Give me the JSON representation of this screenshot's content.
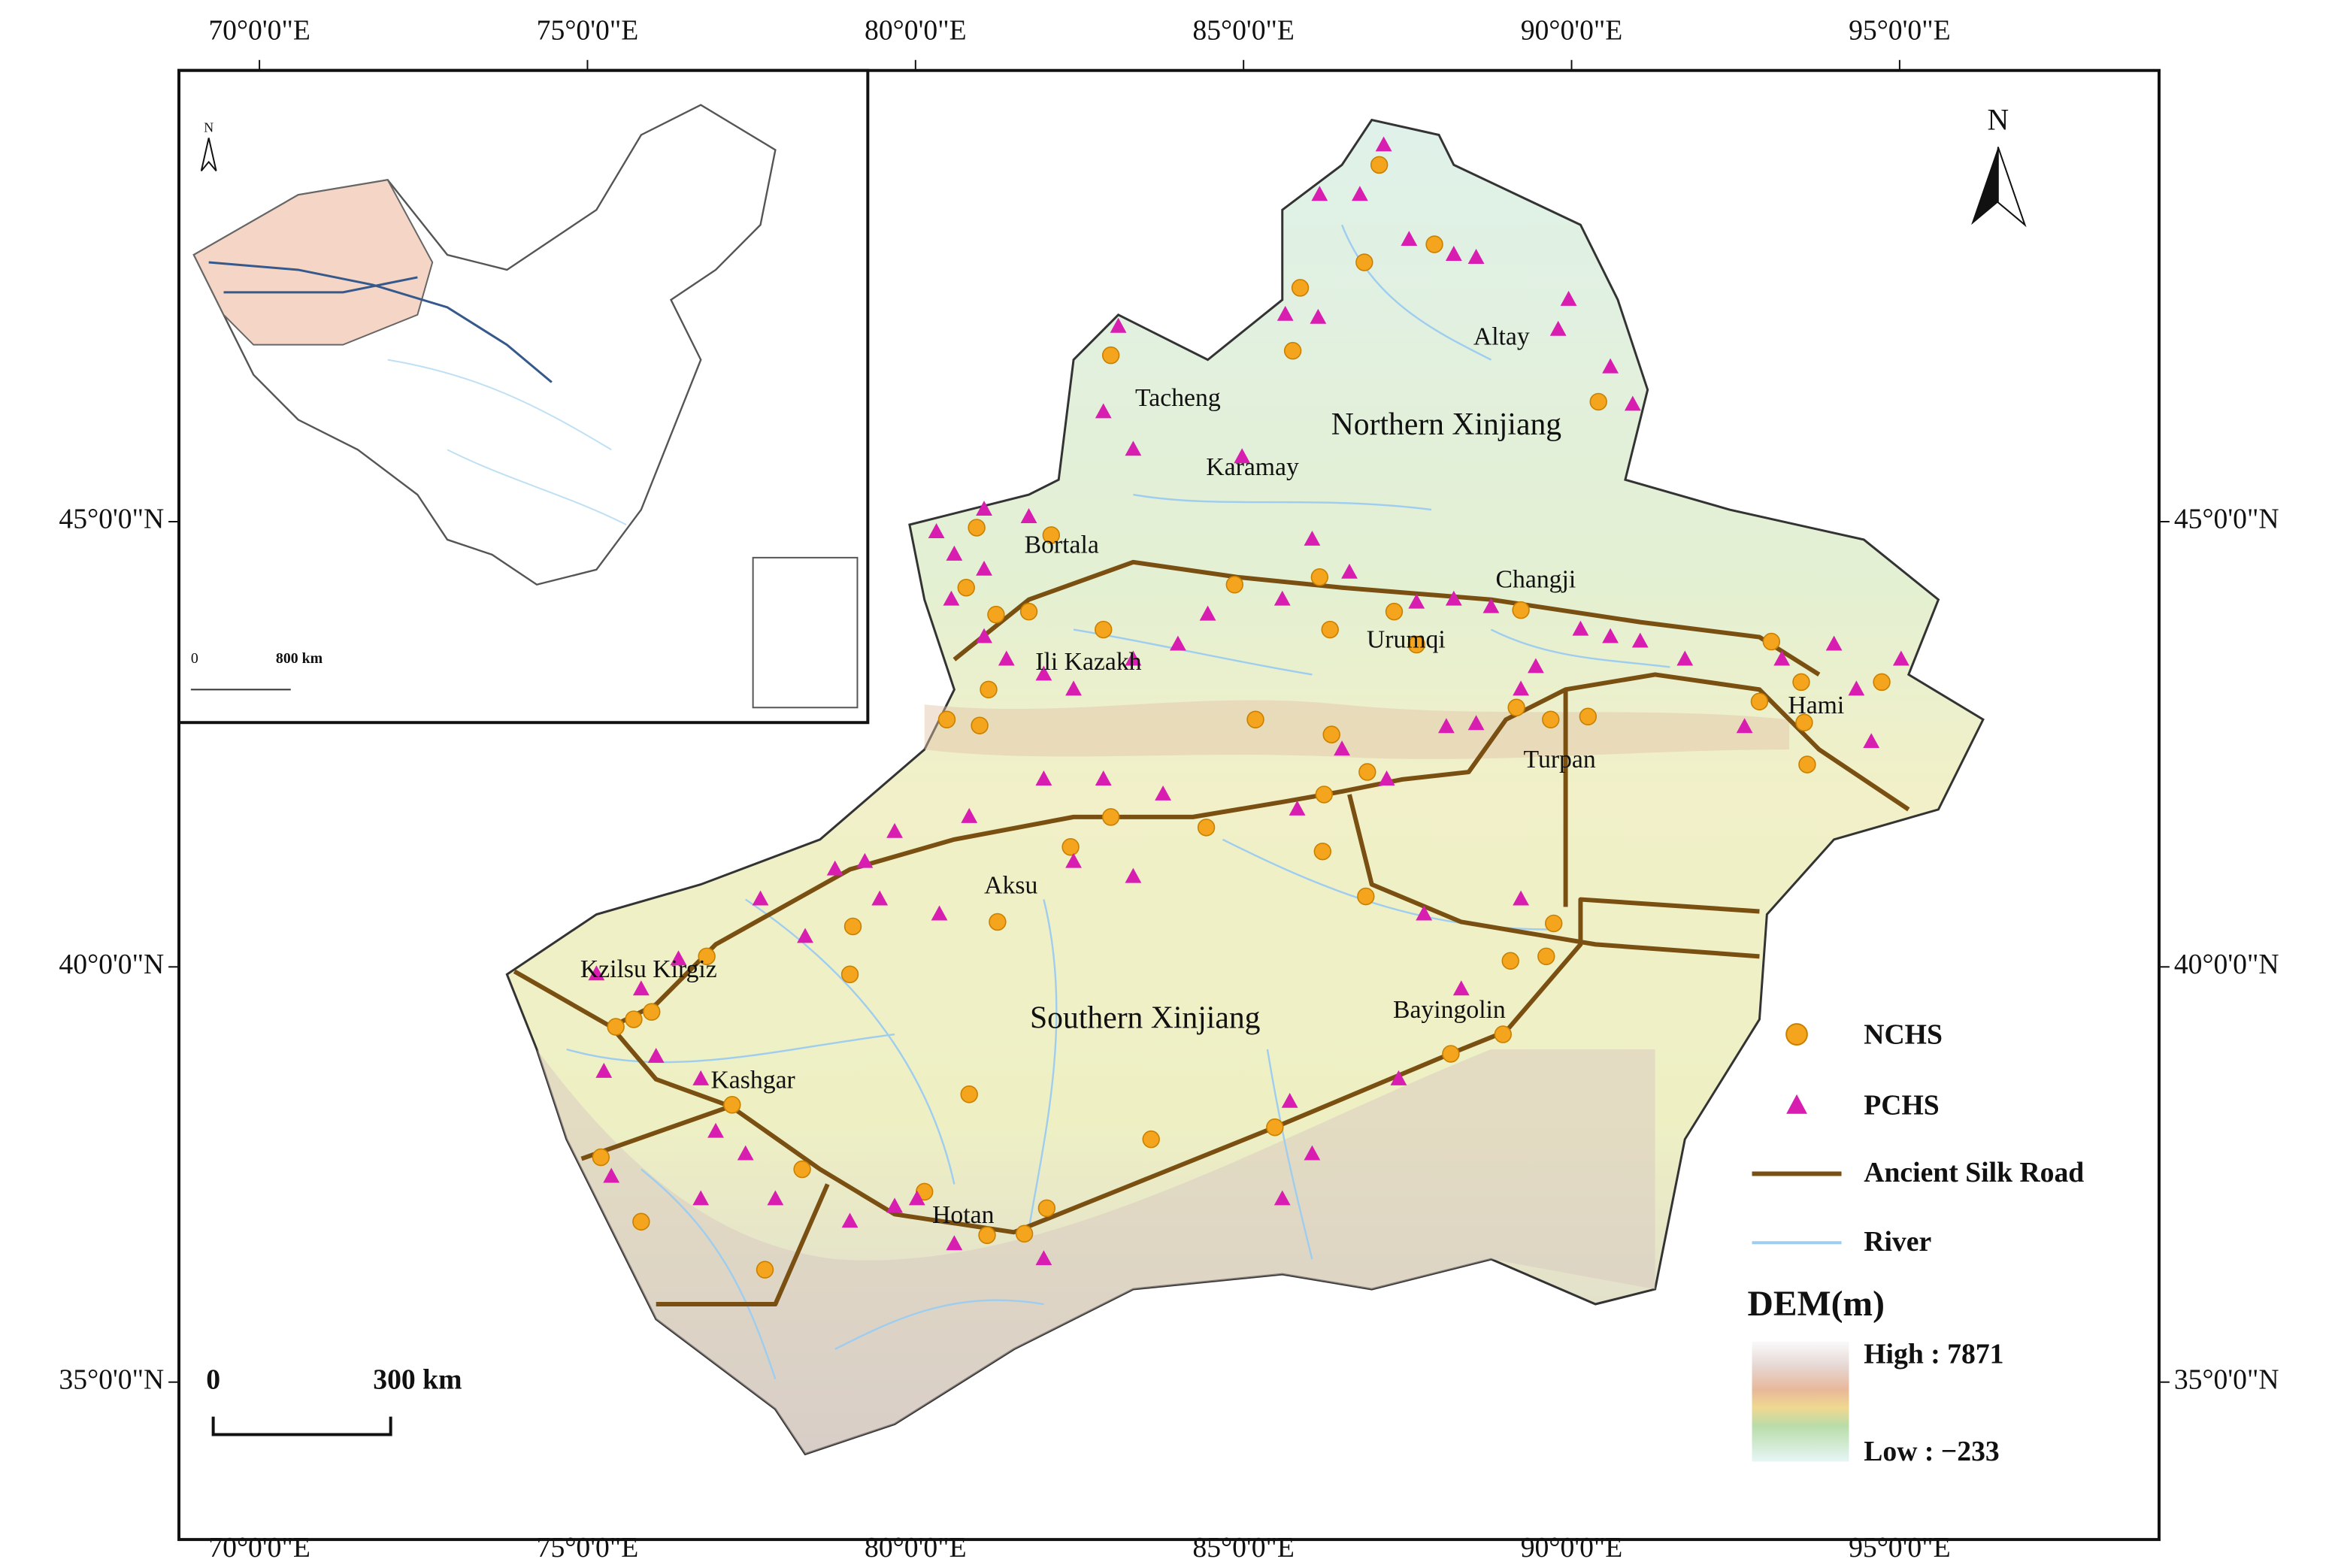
{
  "map": {
    "longitude_labels": [
      "70°0'0\"E",
      "75°0'0\"E",
      "80°0'0\"E",
      "85°0'0\"E",
      "90°0'0\"E",
      "95°0'0\"E"
    ],
    "latitude_labels": [
      "45°0'0\"N",
      "40°0'0\"N",
      "35°0'0\"N"
    ],
    "places": [
      "Altay",
      "Tacheng",
      "Northern Xinjiang",
      "Karamay",
      "Bortala",
      "Changji",
      "Urumqi",
      "Ili Kazakh",
      "Hami",
      "Turpan",
      "Aksu",
      "Kzilsu Kirgiz",
      "Southern Xinjiang",
      "Bayingolin",
      "Kashgar",
      "Hotan"
    ],
    "north": "N",
    "scale_bar": {
      "start": "0",
      "end": "300 km"
    },
    "inset": {
      "north": "N",
      "scale_start": "0",
      "scale_end": "800 km"
    },
    "legend": {
      "items": [
        "NCHS",
        "PCHS",
        "Ancient Silk Road",
        "River"
      ],
      "dem_title": "DEM(m)",
      "high": "High : 7871",
      "low": "Low : −233"
    }
  }
}
